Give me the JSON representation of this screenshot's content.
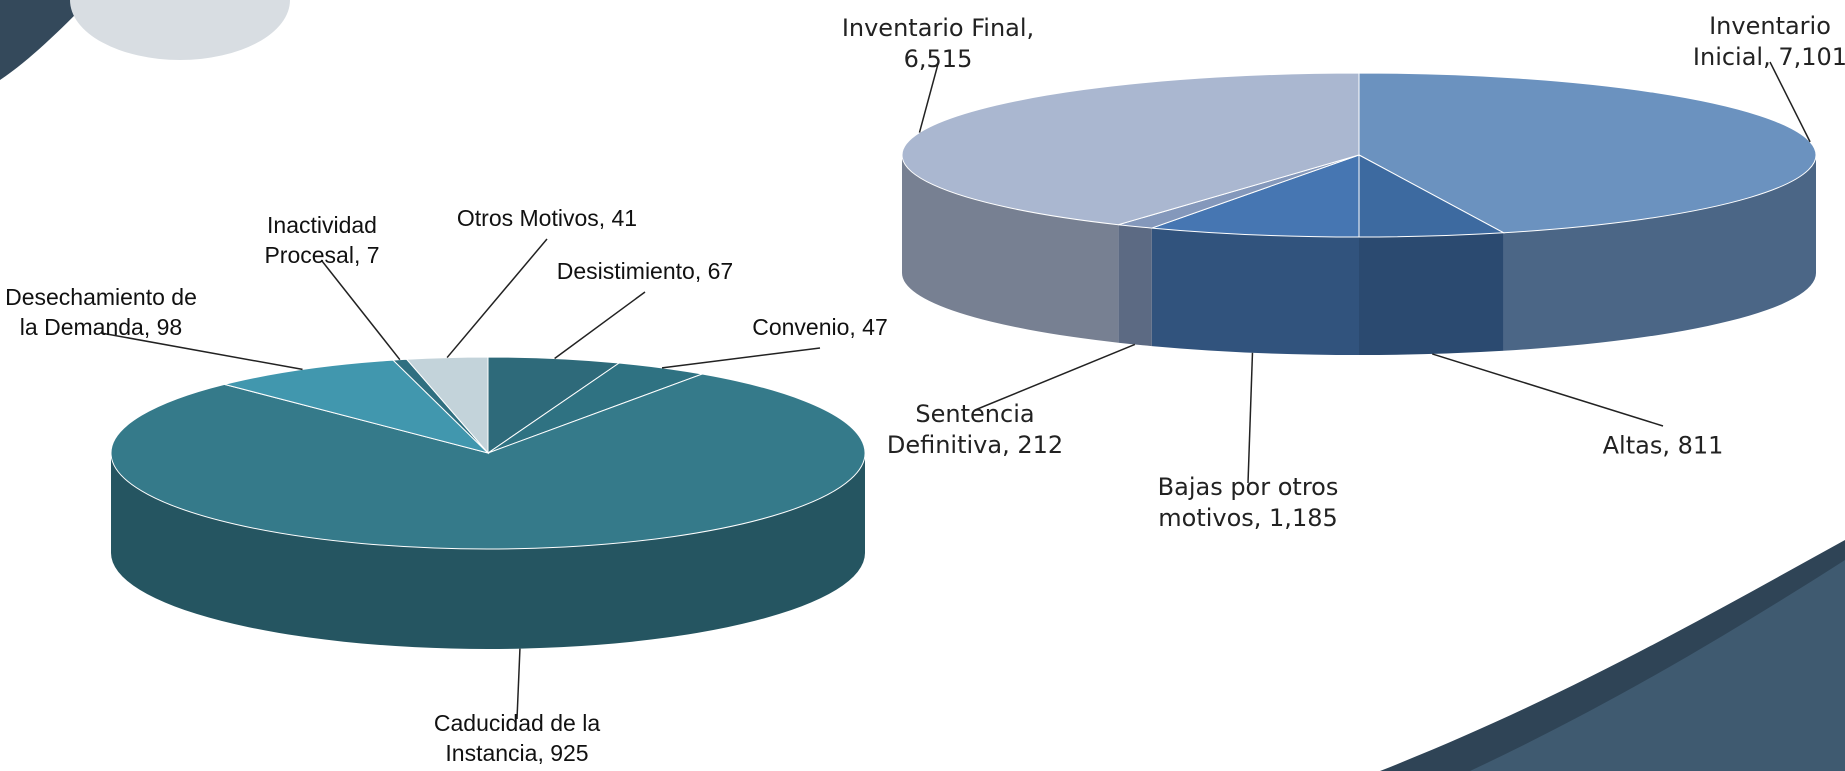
{
  "chart_data": [
    {
      "type": "pie",
      "labels": [
        "Desistimiento, 67",
        "Convenio, 47",
        "Caducidad de la Instancia, 925",
        "Desechamiento de la Demanda, 98",
        "Inactividad Procesal, 7",
        "Otros Motivos, 41"
      ],
      "values": [
        67,
        47,
        925,
        98,
        7,
        41
      ],
      "colors": [
        "#2e6a7a",
        "#2f7282",
        "#357a8a",
        "#4197ae",
        "#2f6f80",
        "#c3d3da"
      ]
    },
    {
      "type": "pie",
      "labels": [
        "Inventario Inicial, 7,101",
        "Altas, 811",
        "Bajas por otros motivos, 1,185",
        "Sentencia Definitiva, 212",
        "Inventario Final, 6,515"
      ],
      "values": [
        7101,
        811,
        1185,
        212,
        6515
      ],
      "colors": [
        "#6b92bf",
        "#3d6aa0",
        "#4676b2",
        "#8498bb",
        "#aab7d0"
      ]
    }
  ]
}
